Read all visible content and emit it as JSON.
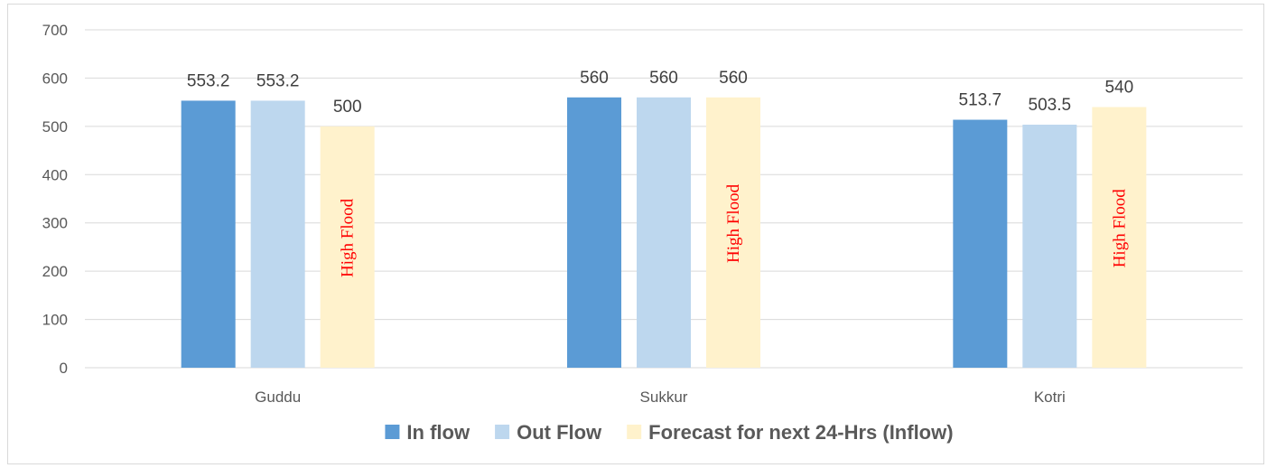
{
  "chart_data": {
    "type": "bar",
    "categories": [
      "Guddu",
      "Sukkur",
      "Kotri"
    ],
    "series": [
      {
        "name": "In flow",
        "values": [
          553.2,
          560,
          513.7
        ],
        "labels": [
          "553.2",
          "560",
          "513.7"
        ],
        "color": "#5b9bd5"
      },
      {
        "name": "Out Flow",
        "values": [
          553.2,
          560,
          503.5
        ],
        "labels": [
          "553.2",
          "560",
          "503.5"
        ],
        "color": "#bdd7ee"
      },
      {
        "name": "Forecast for next 24-Hrs (Inflow)",
        "values": [
          500,
          560,
          540
        ],
        "labels": [
          "500",
          "560",
          "540"
        ],
        "color": "#fff2cc"
      }
    ],
    "annotations": [
      {
        "category": "Guddu",
        "series": "Forecast for next 24-Hrs (Inflow)",
        "text": "High Flood",
        "color": "#ff0000"
      },
      {
        "category": "Sukkur",
        "series": "Forecast for next 24-Hrs (Inflow)",
        "text": "High Flood",
        "color": "#ff0000"
      },
      {
        "category": "Kotri",
        "series": "Forecast for next 24-Hrs (Inflow)",
        "text": "High Flood",
        "color": "#ff0000"
      }
    ],
    "y_ticks": [
      "0",
      "100",
      "200",
      "300",
      "400",
      "500",
      "600",
      "700"
    ],
    "ylim": [
      0,
      700
    ],
    "grid": true,
    "legend_position": "bottom",
    "gridline_color": "#d9d9d9"
  }
}
